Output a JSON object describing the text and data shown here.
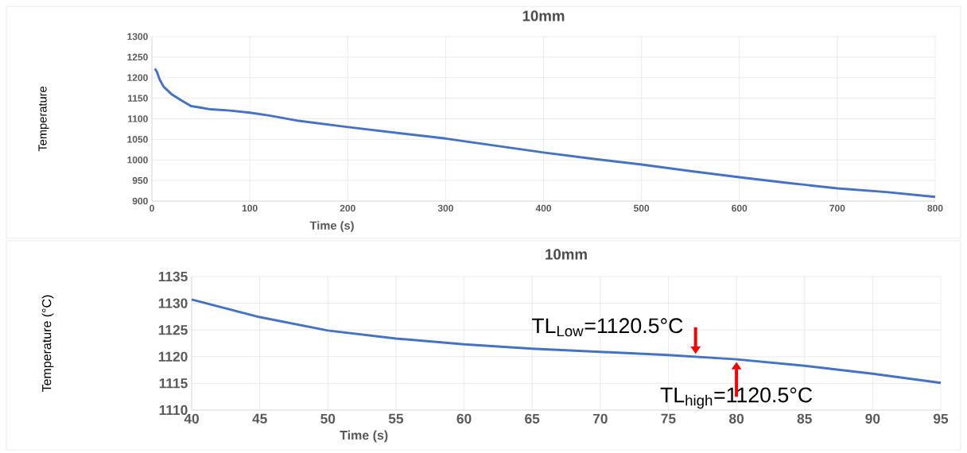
{
  "chart_data": [
    {
      "type": "line",
      "title": "10mm",
      "xlabel": "Time (s)",
      "ylabel": "Temperature",
      "grid": true,
      "x": [
        3,
        5,
        8,
        12,
        20,
        30,
        40,
        60,
        80,
        100,
        120,
        150,
        200,
        250,
        300,
        350,
        400,
        450,
        500,
        550,
        600,
        650,
        700,
        750,
        800
      ],
      "series": [
        {
          "color": "#4472c4",
          "values": [
            1222,
            1215,
            1195,
            1178,
            1160,
            1145,
            1131,
            1123,
            1120,
            1115,
            1108,
            1095,
            1080,
            1066,
            1052,
            1035,
            1018,
            1003,
            989,
            973,
            958,
            944,
            931,
            922,
            910
          ]
        }
      ],
      "xlim": [
        0,
        800
      ],
      "ylim": [
        900,
        1300
      ],
      "xticks": [
        0,
        100,
        200,
        300,
        400,
        500,
        600,
        700,
        800
      ],
      "yticks": [
        900,
        950,
        1000,
        1050,
        1100,
        1150,
        1200,
        1250,
        1300
      ]
    },
    {
      "type": "line",
      "title": "10mm",
      "xlabel": "Time (s)",
      "ylabel": "Temperature (°C)",
      "grid": true,
      "x": [
        40,
        45,
        50,
        55,
        60,
        65,
        70,
        75,
        80,
        85,
        90,
        95
      ],
      "series": [
        {
          "color": "#4472c4",
          "values": [
            1130.7,
            1127.4,
            1124.9,
            1123.4,
            1122.3,
            1121.5,
            1120.9,
            1120.3,
            1119.5,
            1118.3,
            1116.8,
            1115.1
          ]
        }
      ],
      "xlim": [
        40,
        95
      ],
      "ylim": [
        1110,
        1135
      ],
      "xticks": [
        40,
        45,
        50,
        55,
        60,
        65,
        70,
        75,
        80,
        85,
        90,
        95
      ],
      "yticks": [
        1110,
        1115,
        1120,
        1125,
        1130,
        1135
      ],
      "annotations": [
        {
          "text": "TL$_{Low}$=1120.5°C",
          "x": 77,
          "y": 1120
        },
        {
          "text": "TL$_{high}$=1120.5°C",
          "x": 80,
          "y": 1119.5
        }
      ]
    }
  ]
}
